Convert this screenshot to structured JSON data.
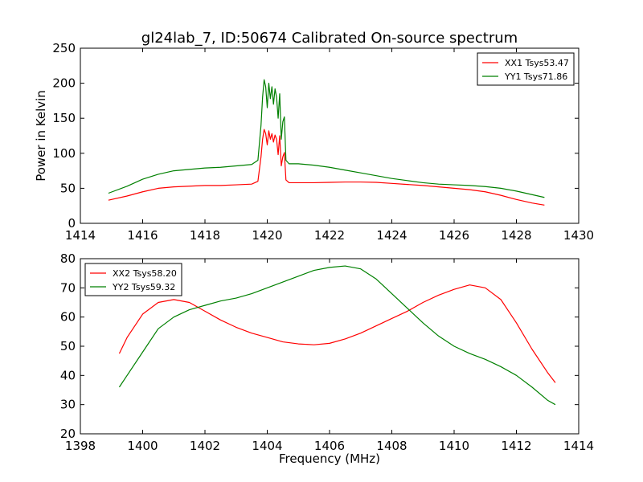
{
  "figure": {
    "title": "gl24lab_7, ID:50674 Calibrated On-source spectrum",
    "xlabel_shared": "Frequency (MHz)"
  },
  "chart_data": [
    {
      "type": "line",
      "title": "gl24lab_7, ID:50674 Calibrated On-source spectrum",
      "xlabel": "",
      "ylabel": "Power in Kelvin",
      "xlim": [
        1414,
        1430
      ],
      "ylim": [
        0,
        250
      ],
      "xticks": [
        1414,
        1416,
        1418,
        1420,
        1422,
        1424,
        1426,
        1428,
        1430
      ],
      "yticks": [
        0,
        50,
        100,
        150,
        200,
        250
      ],
      "grid": false,
      "legend": "top-right",
      "series": [
        {
          "name": "XX1 Tsys53.47",
          "color": "#ff0000",
          "x": [
            1414.9,
            1415.5,
            1416.0,
            1416.5,
            1417.0,
            1417.5,
            1418.0,
            1418.5,
            1419.0,
            1419.5,
            1419.7,
            1419.8,
            1419.85,
            1419.9,
            1419.95,
            1420.0,
            1420.05,
            1420.1,
            1420.15,
            1420.2,
            1420.25,
            1420.3,
            1420.35,
            1420.4,
            1420.45,
            1420.5,
            1420.55,
            1420.6,
            1420.7,
            1421.0,
            1421.5,
            1422.0,
            1422.5,
            1423.0,
            1423.5,
            1424.0,
            1424.5,
            1425.0,
            1425.5,
            1426.0,
            1426.5,
            1427.0,
            1427.5,
            1428.0,
            1428.5,
            1428.9
          ],
          "y": [
            33,
            39,
            45,
            50,
            52,
            53,
            54,
            54,
            55,
            56,
            60,
            95,
            120,
            134,
            128,
            112,
            132,
            120,
            128,
            116,
            126,
            120,
            98,
            125,
            82,
            95,
            101,
            62,
            58,
            58,
            58,
            58.5,
            59,
            59,
            58.5,
            57,
            55.5,
            54,
            52,
            50,
            48,
            45,
            40,
            34,
            29,
            26
          ]
        },
        {
          "name": "YY1 Tsys71.86",
          "color": "#008000",
          "x": [
            1414.9,
            1415.5,
            1416.0,
            1416.5,
            1417.0,
            1417.5,
            1418.0,
            1418.5,
            1419.0,
            1419.5,
            1419.7,
            1419.8,
            1419.85,
            1419.9,
            1419.95,
            1420.0,
            1420.05,
            1420.1,
            1420.15,
            1420.2,
            1420.25,
            1420.3,
            1420.35,
            1420.4,
            1420.45,
            1420.5,
            1420.55,
            1420.6,
            1420.7,
            1421.0,
            1421.5,
            1422.0,
            1422.5,
            1423.0,
            1423.5,
            1424.0,
            1424.5,
            1425.0,
            1425.5,
            1426.0,
            1426.5,
            1427.0,
            1427.5,
            1428.0,
            1428.5,
            1428.9
          ],
          "y": [
            43,
            53,
            63,
            70,
            75,
            77,
            79,
            80,
            82,
            84,
            90,
            140,
            180,
            205,
            195,
            165,
            200,
            178,
            195,
            170,
            192,
            180,
            150,
            185,
            120,
            145,
            152,
            90,
            85,
            85,
            83,
            80,
            76,
            72,
            68,
            64,
            61,
            58,
            56,
            55,
            54,
            52.5,
            50,
            46,
            41,
            37
          ]
        }
      ]
    },
    {
      "type": "line",
      "title": "",
      "xlabel": "Frequency (MHz)",
      "ylabel": "",
      "xlim": [
        1398,
        1414
      ],
      "ylim": [
        20,
        80
      ],
      "xticks": [
        1398,
        1400,
        1402,
        1404,
        1406,
        1408,
        1410,
        1412,
        1414
      ],
      "yticks": [
        20,
        30,
        40,
        50,
        60,
        70,
        80
      ],
      "grid": false,
      "legend": "top-left",
      "series": [
        {
          "name": "XX2 Tsys58.20",
          "color": "#ff0000",
          "x": [
            1399.25,
            1399.5,
            1400.0,
            1400.5,
            1401.0,
            1401.5,
            1402.0,
            1402.5,
            1403.0,
            1403.5,
            1404.0,
            1404.5,
            1405.0,
            1405.5,
            1406.0,
            1406.5,
            1407.0,
            1407.5,
            1408.0,
            1408.5,
            1409.0,
            1409.5,
            1410.0,
            1410.5,
            1411.0,
            1411.5,
            1412.0,
            1412.5,
            1413.0,
            1413.25
          ],
          "y": [
            47.5,
            53,
            61,
            65,
            66,
            65,
            62,
            59,
            56.5,
            54.5,
            53,
            51.5,
            50.8,
            50.5,
            51,
            52.5,
            54.5,
            57,
            59.5,
            62,
            65,
            67.5,
            69.5,
            71,
            70,
            66,
            58,
            49,
            41,
            37.5
          ]
        },
        {
          "name": "YY2 Tsys59.32",
          "color": "#008000",
          "x": [
            1399.25,
            1399.5,
            1400.0,
            1400.5,
            1401.0,
            1401.5,
            1402.0,
            1402.5,
            1403.0,
            1403.5,
            1404.0,
            1404.5,
            1405.0,
            1405.5,
            1406.0,
            1406.5,
            1407.0,
            1407.5,
            1408.0,
            1408.5,
            1409.0,
            1409.5,
            1410.0,
            1410.5,
            1411.0,
            1411.5,
            1412.0,
            1412.5,
            1413.0,
            1413.25
          ],
          "y": [
            36,
            40,
            48,
            56,
            60,
            62.5,
            64,
            65.5,
            66.5,
            68,
            70,
            72,
            74,
            76,
            77,
            77.5,
            76.5,
            73,
            68,
            63,
            58,
            53.5,
            50,
            47.5,
            45.5,
            43,
            40,
            36,
            31.5,
            30
          ]
        }
      ]
    }
  ]
}
